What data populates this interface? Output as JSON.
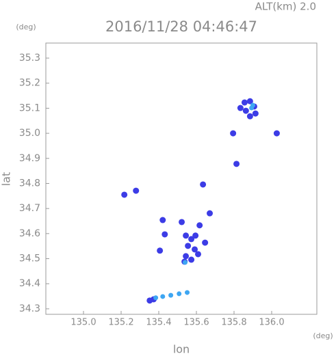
{
  "chart_data": {
    "type": "scatter",
    "title": "2016/11/28 04:46:47",
    "subtitle": "ALT(km) 2.0",
    "y_unit": "(deg)",
    "x_unit": "(deg)",
    "xlabel": "lon",
    "ylabel": "lat",
    "xlim": [
      134.8,
      136.24
    ],
    "ylim": [
      34.278,
      35.36
    ],
    "xticks": [
      {
        "value": 135.0,
        "label": "135.0"
      },
      135.2,
      135.4,
      135.6,
      135.8,
      {
        "value": 136.0,
        "label": "136.0"
      }
    ],
    "yticks": [
      35.3,
      35.2,
      35.1,
      {
        "value": 35.0,
        "label": "35.0"
      },
      34.9,
      34.8,
      34.7,
      34.6,
      34.5,
      34.4,
      34.3
    ],
    "series": [
      {
        "color": "#3c3ce6",
        "x": [
          135.856,
          135.885,
          135.907,
          135.863,
          135.885,
          135.834,
          135.914,
          135.795,
          136.027,
          135.813,
          135.635,
          135.279,
          135.217,
          135.671,
          135.617,
          135.421,
          135.522,
          135.432,
          135.406,
          135.544,
          135.555,
          135.573,
          135.591,
          135.544,
          135.573,
          135.609,
          135.537,
          135.646,
          135.595,
          135.373,
          135.352
        ],
        "y": [
          35.123,
          35.128,
          35.107,
          35.09,
          35.068,
          35.101,
          35.079,
          35.0,
          35.0,
          34.878,
          34.796,
          34.771,
          34.755,
          34.681,
          34.633,
          34.654,
          34.646,
          34.597,
          34.532,
          34.592,
          34.551,
          34.578,
          34.537,
          34.51,
          34.496,
          34.518,
          34.488,
          34.564,
          34.592,
          34.338,
          34.333
        ]
      },
      {
        "color": "#3ea6f2",
        "x": [
          135.893,
          135.9,
          135.384,
          135.421,
          135.464,
          135.508,
          135.551,
          135.54
        ],
        "y": [
          35.101,
          35.112,
          34.344,
          34.349,
          34.354,
          34.36,
          34.365,
          34.485
        ]
      }
    ]
  }
}
